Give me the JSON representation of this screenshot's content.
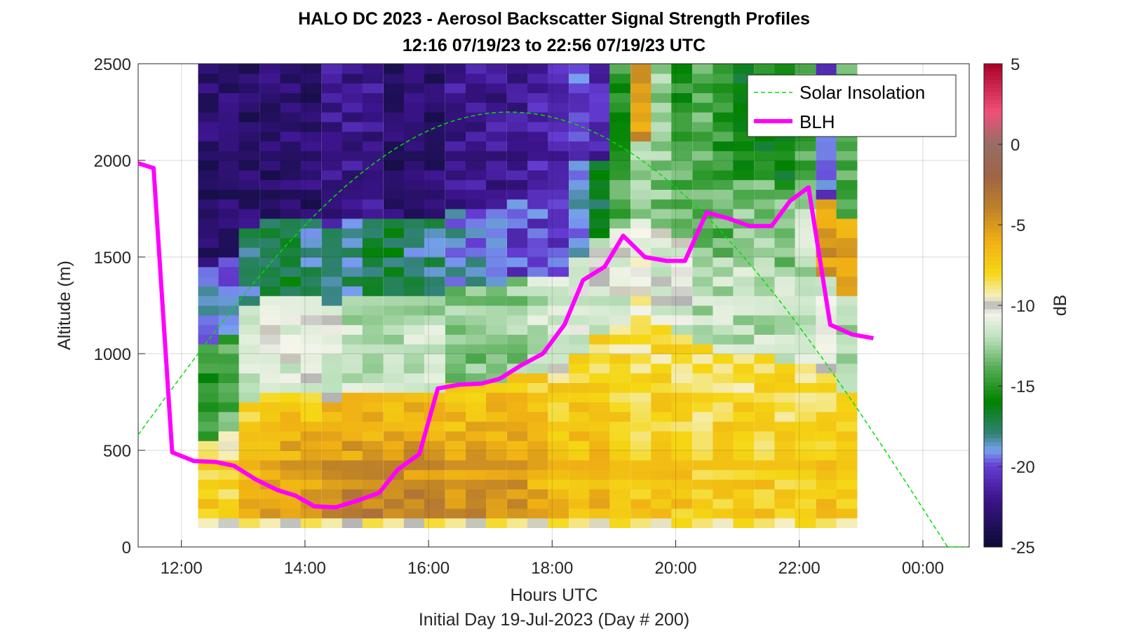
{
  "chart_data": {
    "type": "heatmap",
    "title": "HALO DC 2023 - Aerosol Backscatter Signal Strength Profiles",
    "subtitle": "12:16 07/19/23 to 22:56 07/19/23  UTC",
    "xlabel": "Hours UTC",
    "footer": "Initial Day 19-Jul-2023 (Day # 200)",
    "ylabel": "Altitude (m)",
    "colorbar_label": "dB",
    "xlim_hours": [
      11.3,
      24.75
    ],
    "ylim": [
      0,
      2500
    ],
    "x_ticks": [
      {
        "value": 12,
        "label": "12:00"
      },
      {
        "value": 14,
        "label": "14:00"
      },
      {
        "value": 16,
        "label": "16:00"
      },
      {
        "value": 18,
        "label": "18:00"
      },
      {
        "value": 20,
        "label": "20:00"
      },
      {
        "value": 22,
        "label": "22:00"
      },
      {
        "value": 24,
        "label": "00:00"
      }
    ],
    "y_ticks": [
      0,
      500,
      1000,
      1500,
      2000,
      2500
    ],
    "colorbar_range": [
      -25,
      5
    ],
    "colorbar_ticks": [
      5,
      0,
      -5,
      -10,
      -15,
      -20,
      -25
    ],
    "grid": true,
    "legend_position": "top-right",
    "legend": [
      {
        "label": "Solar Insolation",
        "color": "#00e000",
        "style": "dashed"
      },
      {
        "label": "BLH",
        "color": "#ff00ff",
        "style": "solid"
      }
    ],
    "heatmap": {
      "x_start_hours": 12.27,
      "x_step_hours": 0.333,
      "y_start_m": 100,
      "y_step_m": 50,
      "profiles_dB": [
        {
          "time": 12.27,
          "top": 2500,
          "pbl": 520,
          "bl": -7,
          "mid": -15,
          "up": -19,
          "free": -23
        },
        {
          "time": 12.6,
          "top": 2500,
          "pbl": 560,
          "bl": -7,
          "mid": -14,
          "up": -19,
          "free": -23
        },
        {
          "time": 12.93,
          "top": 2500,
          "pbl": 720,
          "bl": -6,
          "mid": -12,
          "up": -18,
          "free": -23
        },
        {
          "time": 13.27,
          "top": 2500,
          "pbl": 780,
          "bl": -5,
          "mid": -11,
          "up": -17,
          "free": -23
        },
        {
          "time": 13.6,
          "top": 2500,
          "pbl": 780,
          "bl": -4,
          "mid": -11,
          "up": -17,
          "free": -23
        },
        {
          "time": 13.93,
          "top": 2500,
          "pbl": 760,
          "bl": -4,
          "mid": -11,
          "up": -18,
          "free": -23
        },
        {
          "time": 14.27,
          "top": 2500,
          "pbl": 740,
          "bl": -3,
          "mid": -11,
          "up": -18,
          "free": -22
        },
        {
          "time": 14.6,
          "top": 2500,
          "pbl": 760,
          "bl": -3,
          "mid": -12,
          "up": -18,
          "free": -22
        },
        {
          "time": 14.93,
          "top": 2500,
          "pbl": 790,
          "bl": -3,
          "mid": -12,
          "up": -17,
          "free": -22
        },
        {
          "time": 15.27,
          "top": 2500,
          "pbl": 790,
          "bl": -3,
          "mid": -12,
          "up": -17,
          "free": -23
        },
        {
          "time": 15.6,
          "top": 2500,
          "pbl": 790,
          "bl": -3,
          "mid": -12,
          "up": -18,
          "free": -23
        },
        {
          "time": 15.93,
          "top": 2500,
          "pbl": 800,
          "bl": -3,
          "mid": -12,
          "up": -18,
          "free": -23
        },
        {
          "time": 16.27,
          "top": 2500,
          "pbl": 840,
          "bl": -4,
          "mid": -13,
          "up": -19,
          "free": -22
        },
        {
          "time": 16.6,
          "top": 2500,
          "pbl": 840,
          "bl": -4,
          "mid": -13,
          "up": -19,
          "free": -22
        },
        {
          "time": 16.93,
          "top": 2500,
          "pbl": 840,
          "bl": -4,
          "mid": -13,
          "up": -19,
          "free": -22
        },
        {
          "time": 17.27,
          "top": 2500,
          "pbl": 860,
          "bl": -4,
          "mid": -13,
          "up": -20,
          "free": -22
        },
        {
          "time": 17.6,
          "top": 2500,
          "pbl": 880,
          "bl": -5,
          "mid": -12,
          "up": -20,
          "free": -21
        },
        {
          "time": 17.93,
          "top": 2500,
          "pbl": 900,
          "bl": -6,
          "mid": -11,
          "up": -20,
          "free": -21
        },
        {
          "time": 18.27,
          "top": 2500,
          "pbl": 1000,
          "bl": -6,
          "mid": -11,
          "up": -19,
          "free": -20
        },
        {
          "time": 18.6,
          "top": 2500,
          "pbl": 1100,
          "bl": -6,
          "mid": -11,
          "up": -17,
          "free": -21
        },
        {
          "time": 18.93,
          "top": 2500,
          "pbl": 1150,
          "bl": -7,
          "mid": -11,
          "up": -14,
          "free": -15
        },
        {
          "time": 19.27,
          "top": 2500,
          "pbl": 1200,
          "bl": -7,
          "mid": -10,
          "up": -13,
          "free": -5
        },
        {
          "time": 19.6,
          "top": 2500,
          "pbl": 1150,
          "bl": -7,
          "mid": -11,
          "up": -13,
          "free": -13
        },
        {
          "time": 19.93,
          "top": 2500,
          "pbl": 1100,
          "bl": -7,
          "mid": -11,
          "up": -14,
          "free": -15
        },
        {
          "time": 20.27,
          "top": 2500,
          "pbl": 1050,
          "bl": -7,
          "mid": -12,
          "up": -14,
          "free": -14
        },
        {
          "time": 20.6,
          "top": 2500,
          "pbl": 1000,
          "bl": -7,
          "mid": -12,
          "up": -14,
          "free": -15
        },
        {
          "time": 20.93,
          "top": 2500,
          "pbl": 1000,
          "bl": -7,
          "mid": -12,
          "up": -13,
          "free": -16
        },
        {
          "time": 21.27,
          "top": 2500,
          "pbl": 980,
          "bl": -7,
          "mid": -12,
          "up": -13,
          "free": -16
        },
        {
          "time": 21.6,
          "top": 2500,
          "pbl": 950,
          "bl": -7,
          "mid": -12,
          "up": -13,
          "free": -16
        },
        {
          "time": 21.93,
          "top": 2500,
          "pbl": 950,
          "bl": -7,
          "mid": -12,
          "up": -12,
          "free": -14
        },
        {
          "time": 22.27,
          "top": 2500,
          "pbl": 900,
          "bl": -6,
          "mid": -11,
          "up": -5,
          "free": -20
        },
        {
          "time": 22.6,
          "top": 2500,
          "pbl": 800,
          "bl": -7,
          "mid": -12,
          "up": -6,
          "free": -14
        }
      ]
    },
    "series": [
      {
        "name": "BLH",
        "x_hours": [
          11.3,
          11.55,
          11.85,
          12.2,
          12.55,
          12.85,
          13.2,
          13.55,
          13.85,
          14.15,
          14.5,
          14.85,
          15.2,
          15.5,
          15.85,
          16.15,
          16.5,
          16.85,
          17.15,
          17.5,
          17.85,
          18.2,
          18.5,
          18.85,
          19.15,
          19.5,
          19.85,
          20.15,
          20.5,
          20.85,
          21.2,
          21.55,
          21.85,
          22.15,
          22.5,
          22.85,
          23.2
        ],
        "y": [
          1985,
          1960,
          490,
          445,
          440,
          420,
          350,
          295,
          265,
          210,
          205,
          240,
          280,
          400,
          480,
          820,
          840,
          845,
          870,
          940,
          1000,
          1150,
          1380,
          1450,
          1610,
          1500,
          1480,
          1480,
          1730,
          1700,
          1660,
          1660,
          1790,
          1860,
          1150,
          1100,
          1080
        ]
      },
      {
        "name": "Solar Insolation",
        "type": "line",
        "style": "dashed",
        "x_hours_start": 11.3,
        "x_hours_peak": 17.3,
        "x_hours_zero": 24.4,
        "y_peak_m": 2250,
        "y_start_m": 580
      }
    ]
  }
}
